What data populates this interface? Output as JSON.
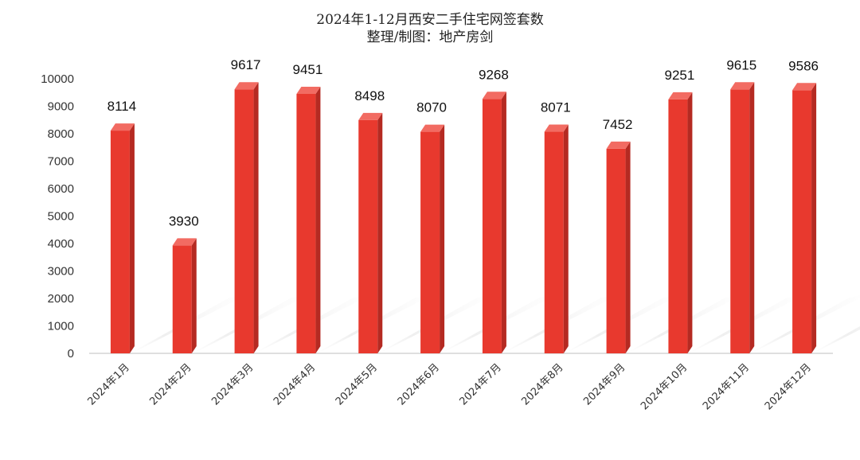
{
  "chart_data": {
    "type": "bar",
    "title": "2024年1-12月西安二手住宅网签套数",
    "subtitle": "整理/制图：地产房剑",
    "categories": [
      "2024年1月",
      "2024年2月",
      "2024年3月",
      "2024年4月",
      "2024年5月",
      "2024年6月",
      "2024年7月",
      "2024年8月",
      "2024年9月",
      "2024年10月",
      "2024年11月",
      "2024年12月"
    ],
    "values": [
      8114,
      3930,
      9617,
      9451,
      8498,
      8070,
      9268,
      8071,
      7452,
      9251,
      9615,
      9586
    ],
    "ylim": [
      0,
      10000
    ],
    "y_ticks": [
      0,
      1000,
      2000,
      3000,
      4000,
      5000,
      6000,
      7000,
      8000,
      9000,
      10000
    ],
    "xlabel": "",
    "ylabel": "",
    "grid": false,
    "bar_color": "#E8392E",
    "bar_top_color": "#F26B62",
    "bar_side_color": "#B52A22"
  }
}
